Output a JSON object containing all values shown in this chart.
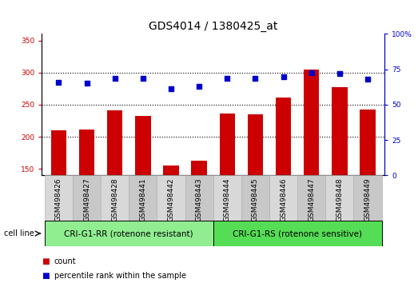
{
  "title": "GDS4014 / 1380425_at",
  "categories": [
    "GSM498426",
    "GSM498427",
    "GSM498428",
    "GSM498441",
    "GSM498442",
    "GSM498443",
    "GSM498444",
    "GSM498445",
    "GSM498446",
    "GSM498447",
    "GSM498448",
    "GSM498449"
  ],
  "bar_values": [
    210,
    211,
    241,
    233,
    155,
    163,
    236,
    235,
    261,
    305,
    277,
    242
  ],
  "dot_values": [
    285,
    284,
    291,
    291,
    275,
    279,
    291,
    291,
    294,
    300,
    298,
    290
  ],
  "bar_color": "#cc0000",
  "dot_color": "#0000cc",
  "ylim_left": [
    140,
    360
  ],
  "ylim_right": [
    0,
    100
  ],
  "left_yticks": [
    150,
    200,
    250,
    300,
    350
  ],
  "right_yticks": [
    0,
    25,
    50,
    75,
    100
  ],
  "grid_values": [
    200,
    250,
    300
  ],
  "group1_label": "CRI-G1-RR (rotenone resistant)",
  "group2_label": "CRI-G1-RS (rotenone sensitive)",
  "group1_color": "#90ee90",
  "group2_color": "#55dd55",
  "cell_line_label": "cell line",
  "legend_count": "count",
  "legend_percentile": "percentile rank within the sample",
  "n_group1": 6,
  "n_group2": 6,
  "bar_width": 0.55,
  "title_fontsize": 10,
  "tick_fontsize": 6.5,
  "label_fontsize": 7.5,
  "group_label_fontsize": 7.5,
  "xtick_gray": "#d0d0d0"
}
